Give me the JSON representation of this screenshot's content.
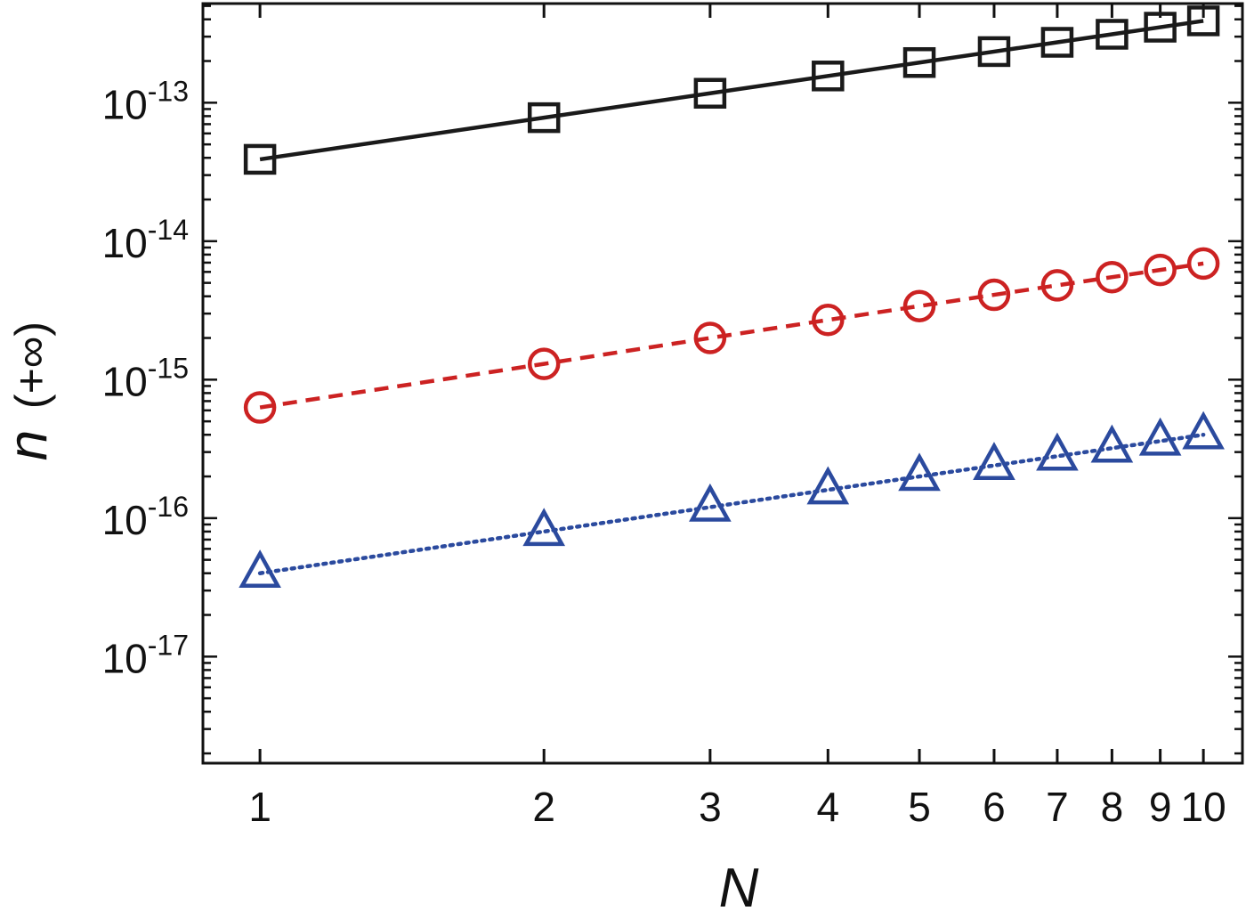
{
  "chart_data": {
    "type": "line",
    "x_scale": "log",
    "y_scale": "log",
    "xlim": [
      0.87,
      11.0
    ],
    "ylim": [
      1.7e-18,
      5.2e-13
    ],
    "x_ticks": [
      {
        "value": 1,
        "label": "1"
      },
      {
        "value": 2,
        "label": "2"
      },
      {
        "value": 3,
        "label": "3"
      },
      {
        "value": 4,
        "label": "4"
      },
      {
        "value": 5,
        "label": "5"
      },
      {
        "value": 6,
        "label": "6"
      },
      {
        "value": 7,
        "label": "7"
      },
      {
        "value": 8,
        "label": "8"
      },
      {
        "value": 9,
        "label": "9"
      },
      {
        "value": 10,
        "label": "10"
      }
    ],
    "y_ticks": [
      {
        "value": 1e-13,
        "base": "10",
        "exp": "-13"
      },
      {
        "value": 1e-14,
        "base": "10",
        "exp": "-14"
      },
      {
        "value": 1e-15,
        "base": "10",
        "exp": "-15"
      },
      {
        "value": 1e-16,
        "base": "10",
        "exp": "-16"
      },
      {
        "value": 1e-17,
        "base": "10",
        "exp": "-17"
      }
    ],
    "xlabel": "N",
    "ylabel": "n",
    "ylabel_sub": "(+∞)",
    "grid": false,
    "x": [
      1,
      2,
      3,
      4,
      5,
      6,
      7,
      8,
      9,
      10
    ],
    "series": [
      {
        "marker": "square",
        "line_style": "solid",
        "color": "#1a1a1a",
        "values": [
          3.9e-14,
          7.8e-14,
          1.17e-13,
          1.56e-13,
          1.95e-13,
          2.34e-13,
          2.73e-13,
          3.12e-13,
          3.51e-13,
          3.9e-13
        ]
      },
      {
        "marker": "circle",
        "line_style": "dashed",
        "color": "#cc2222",
        "values": [
          6.3e-16,
          1.3e-15,
          2e-15,
          2.7e-15,
          3.4e-15,
          4.1e-15,
          4.8e-15,
          5.5e-15,
          6.2e-15,
          6.9e-15
        ]
      },
      {
        "marker": "triangle",
        "line_style": "dotted",
        "color": "#2b4a9e",
        "values": [
          4e-17,
          8e-17,
          1.2e-16,
          1.6e-16,
          2e-16,
          2.4e-16,
          2.8e-16,
          3.2e-16,
          3.6e-16,
          4e-16
        ]
      }
    ]
  }
}
